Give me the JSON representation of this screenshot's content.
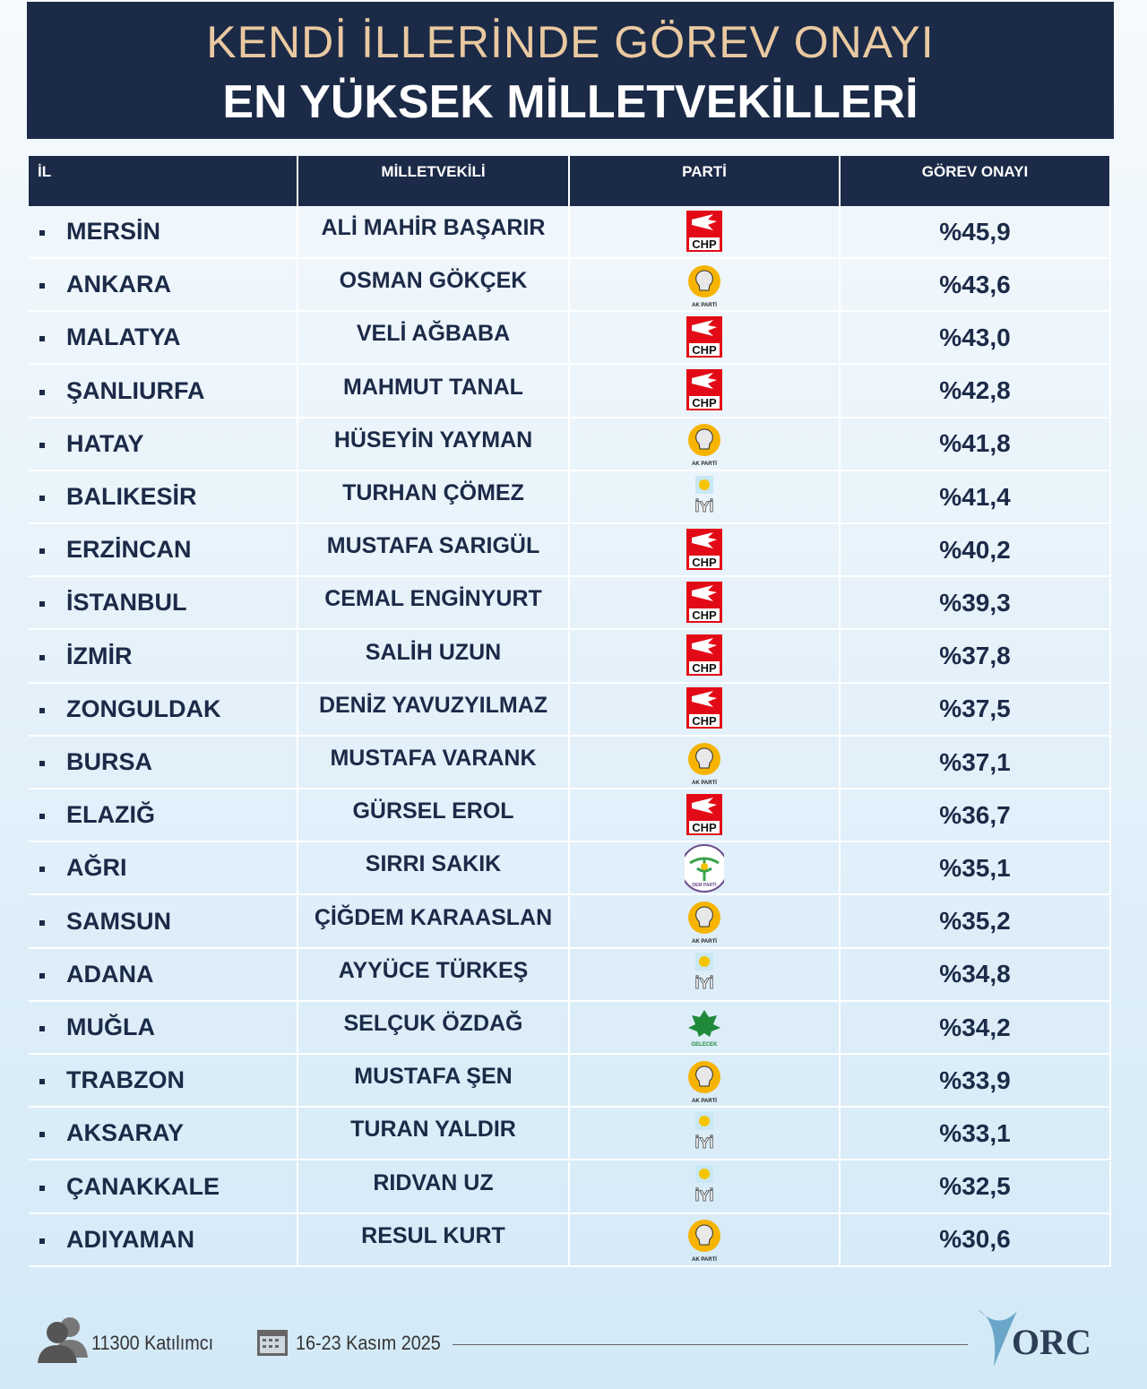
{
  "header": {
    "title": "KENDİ İLLERİNDE GÖREV ONAYI",
    "subtitle": "EN YÜKSEK MİLLETVEKİLLERİ"
  },
  "table": {
    "columns": [
      "İL",
      "MİLLETVEKİLİ",
      "PARTİ",
      "GÖREV ONAYI"
    ],
    "rows": [
      {
        "il": "MERSİN",
        "milletvekili": "ALİ MAHİR BAŞARIR",
        "parti": {
          "label": "CHP",
          "logo": "red-square"
        },
        "onay": "%45,9"
      },
      {
        "il": "ANKARA",
        "milletvekili": "OSMAN GÖKÇEK",
        "parti": {
          "label": "AK PARTİ",
          "logo": "bulb"
        },
        "onay": "%43,6"
      },
      {
        "il": "MALATYA",
        "milletvekili": "VELİ AĞBABA",
        "parti": {
          "label": "CHP",
          "logo": "red-square"
        },
        "onay": "%43,0"
      },
      {
        "il": "ŞANLIURFA",
        "milletvekili": "MAHMUT TANAL",
        "parti": {
          "label": "CHP",
          "logo": "red-square"
        },
        "onay": "%42,8"
      },
      {
        "il": "HATAY",
        "milletvekili": "HÜSEYİN YAYMAN",
        "parti": {
          "label": "AK PARTİ",
          "logo": "bulb"
        },
        "onay": "%41,8"
      },
      {
        "il": "BALIKESİR",
        "milletvekili": "TURHAN ÇÖMEZ",
        "parti": {
          "label": "İYİ",
          "logo": "sun-square"
        },
        "onay": "%41,4"
      },
      {
        "il": "ERZİNCAN",
        "milletvekili": "MUSTAFA SARIGÜL",
        "parti": {
          "label": "CHP",
          "logo": "red-square"
        },
        "onay": "%40,2"
      },
      {
        "il": "İSTANBUL",
        "milletvekili": "CEMAL ENGİNYURT",
        "parti": {
          "label": "CHP",
          "logo": "red-square"
        },
        "onay": "%39,3"
      },
      {
        "il": "İZMİR",
        "milletvekili": "SALİH UZUN",
        "parti": {
          "label": "CHP",
          "logo": "red-square"
        },
        "onay": "%37,8"
      },
      {
        "il": "ZONGULDAK",
        "milletvekili": "DENİZ YAVUZYILMAZ",
        "parti": {
          "label": "CHP",
          "logo": "red-square"
        },
        "onay": "%37,5"
      },
      {
        "il": "BURSA",
        "milletvekili": "MUSTAFA VARANK",
        "parti": {
          "label": "AK PARTİ",
          "logo": "bulb"
        },
        "onay": "%37,1"
      },
      {
        "il": "ELAZIĞ",
        "milletvekili": "GÜRSEL EROL",
        "parti": {
          "label": "CHP",
          "logo": "red-square"
        },
        "onay": "%36,7"
      },
      {
        "il": "AĞRI",
        "milletvekili": "SIRRI SAKIK",
        "parti": {
          "label": "DEM PARTİ",
          "logo": "tree-circle"
        },
        "onay": "%35,1"
      },
      {
        "il": "SAMSUN",
        "milletvekili": "ÇİĞDEM KARAASLAN",
        "parti": {
          "label": "AK PARTİ",
          "logo": "bulb"
        },
        "onay": "%35,2"
      },
      {
        "il": "ADANA",
        "milletvekili": "AYYÜCE TÜRKEŞ",
        "parti": {
          "label": "İYİ",
          "logo": "sun-square"
        },
        "onay": "%34,8"
      },
      {
        "il": "MUĞLA",
        "milletvekili": "SELÇUK ÖZDAĞ",
        "parti": {
          "label": "GELECEK",
          "logo": "leaf"
        },
        "onay": "%34,2"
      },
      {
        "il": "TRABZON",
        "milletvekili": "MUSTAFA ŞEN",
        "parti": {
          "label": "AK PARTİ",
          "logo": "bulb"
        },
        "onay": "%33,9"
      },
      {
        "il": "AKSARAY",
        "milletvekili": "TURAN YALDIR",
        "parti": {
          "label": "İYİ",
          "logo": "sun-square"
        },
        "onay": "%33,1"
      },
      {
        "il": "ÇANAKKALE",
        "milletvekili": "RIDVAN UZ",
        "parti": {
          "label": "İYİ",
          "logo": "sun-square"
        },
        "onay": "%32,5"
      },
      {
        "il": "ADIYAMAN",
        "milletvekili": "RESUL KURT",
        "parti": {
          "label": "AK PARTİ",
          "logo": "bulb"
        },
        "onay": "%30,6"
      }
    ]
  },
  "footer": {
    "participants": "11300 Katılımcı",
    "dates": "16-23 Kasım 2025",
    "brand": "ORC"
  }
}
